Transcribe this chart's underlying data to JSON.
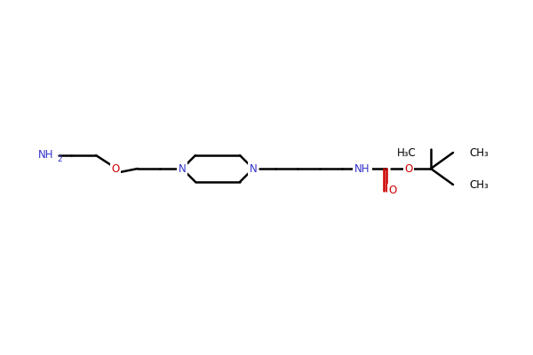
{
  "bg_color": "#ffffff",
  "bond_color": "#000000",
  "n_color": "#3333cc",
  "o_color": "#cc0000",
  "line_width": 1.8,
  "font_size": 8.5,
  "fig_width": 6.0,
  "fig_height": 4.0,
  "dpi": 100,
  "xlim": [
    0,
    600
  ],
  "ylim": [
    0,
    400
  ]
}
